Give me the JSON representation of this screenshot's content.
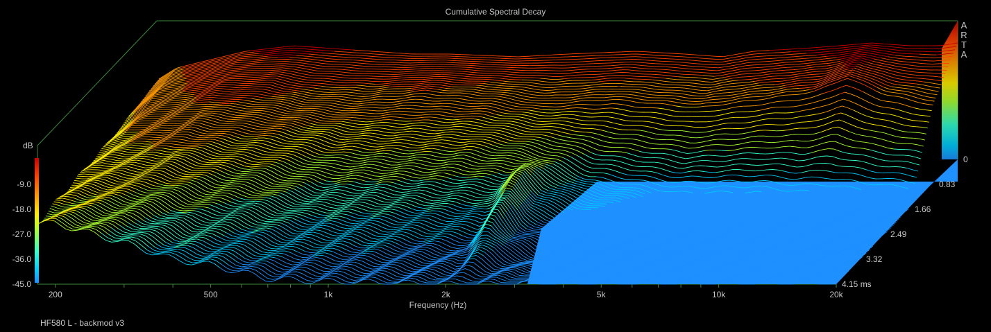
{
  "app": {
    "watermark_letters": [
      "A",
      "R",
      "T",
      "A"
    ],
    "footer_label": "HF580 L - backmod v3"
  },
  "chart_data": {
    "type": "waterfall",
    "title": "Cumulative Spectral Decay",
    "xlabel": "Frequency (Hz)",
    "ylabel": "dB",
    "zlabel": "ms",
    "x_scale": "log",
    "xlim": [
      180,
      20000
    ],
    "ylim": [
      -45,
      0
    ],
    "zlim": [
      0,
      4.15
    ],
    "x_ticks": [
      {
        "value": 200,
        "label": "200"
      },
      {
        "value": 500,
        "label": "500"
      },
      {
        "value": 1000,
        "label": "1k"
      },
      {
        "value": 2000,
        "label": "2k"
      },
      {
        "value": 5000,
        "label": "5k"
      },
      {
        "value": 10000,
        "label": "10k"
      },
      {
        "value": 20000,
        "label": "20k"
      }
    ],
    "y_ticks": [
      {
        "value": -9,
        "label": "-9.0"
      },
      {
        "value": -18,
        "label": "-18.0"
      },
      {
        "value": -27,
        "label": "-27.0"
      },
      {
        "value": -36,
        "label": "-36.0"
      },
      {
        "value": -45,
        "label": "-45.0"
      }
    ],
    "z_ticks": [
      {
        "value": 0,
        "label": "0"
      },
      {
        "value": 0.83,
        "label": "0.83"
      },
      {
        "value": 1.66,
        "label": "1.66"
      },
      {
        "value": 2.49,
        "label": "2.49"
      },
      {
        "value": 3.32,
        "label": "3.32"
      },
      {
        "value": 4.15,
        "label": "4.15 ms"
      }
    ],
    "colormap": [
      "#1e90ff",
      "#00ccff",
      "#33ffcc",
      "#aaff33",
      "#ffee00",
      "#ff9900",
      "#ff4400",
      "#cc0000"
    ],
    "floor_color": "#1e90ff",
    "slices": [
      {
        "time_ms": 0.0,
        "points": [
          [
            180,
            -16
          ],
          [
            200,
            -12
          ],
          [
            300,
            -6
          ],
          [
            400,
            -4
          ],
          [
            500,
            -5
          ],
          [
            800,
            -7
          ],
          [
            1000,
            -7
          ],
          [
            1500,
            -8
          ],
          [
            2000,
            -7
          ],
          [
            3000,
            -6
          ],
          [
            4000,
            -7
          ],
          [
            5000,
            -8
          ],
          [
            6000,
            -6
          ],
          [
            8000,
            -5
          ],
          [
            10000,
            -4
          ],
          [
            12000,
            -3
          ],
          [
            15000,
            -4
          ],
          [
            18000,
            -4
          ],
          [
            20000,
            -3
          ]
        ]
      },
      {
        "time_ms": 0.83,
        "points": [
          [
            180,
            -18
          ],
          [
            200,
            -14
          ],
          [
            300,
            -9
          ],
          [
            400,
            -9
          ],
          [
            500,
            -12
          ],
          [
            700,
            -13
          ],
          [
            1000,
            -11
          ],
          [
            1500,
            -13
          ],
          [
            2000,
            -16
          ],
          [
            3000,
            -14
          ],
          [
            5000,
            -17
          ],
          [
            8000,
            -13
          ],
          [
            10000,
            -11
          ],
          [
            12000,
            -6
          ],
          [
            15000,
            -12
          ],
          [
            20000,
            -16
          ]
        ]
      },
      {
        "time_ms": 1.66,
        "points": [
          [
            180,
            -20
          ],
          [
            200,
            -17
          ],
          [
            300,
            -13
          ],
          [
            400,
            -15
          ],
          [
            500,
            -16
          ],
          [
            700,
            -20
          ],
          [
            1000,
            -21
          ],
          [
            1500,
            -21
          ],
          [
            2000,
            -24
          ],
          [
            2500,
            -28
          ],
          [
            3000,
            -34
          ],
          [
            5000,
            -40
          ],
          [
            8000,
            -40
          ],
          [
            10000,
            -42
          ],
          [
            20000,
            -45
          ]
        ]
      },
      {
        "time_ms": 2.49,
        "points": [
          [
            180,
            -21
          ],
          [
            200,
            -19
          ],
          [
            300,
            -18
          ],
          [
            400,
            -22
          ],
          [
            500,
            -24
          ],
          [
            700,
            -30
          ],
          [
            1000,
            -30
          ],
          [
            1500,
            -32
          ],
          [
            2000,
            -33
          ],
          [
            2200,
            -25
          ],
          [
            2500,
            -36
          ],
          [
            3000,
            -40
          ],
          [
            4000,
            -45
          ],
          [
            20000,
            -45
          ]
        ]
      },
      {
        "time_ms": 3.32,
        "points": [
          [
            180,
            -22
          ],
          [
            200,
            -21
          ],
          [
            300,
            -24
          ],
          [
            400,
            -30
          ],
          [
            500,
            -31
          ],
          [
            700,
            -36
          ],
          [
            1000,
            -37
          ],
          [
            1500,
            -40
          ],
          [
            2000,
            -42
          ],
          [
            2200,
            -32
          ],
          [
            2500,
            -40
          ],
          [
            3000,
            -45
          ],
          [
            20000,
            -45
          ]
        ]
      },
      {
        "time_ms": 4.15,
        "points": [
          [
            180,
            -23
          ],
          [
            200,
            -23
          ],
          [
            300,
            -30
          ],
          [
            400,
            -36
          ],
          [
            500,
            -38
          ],
          [
            700,
            -43
          ],
          [
            1000,
            -44
          ],
          [
            2000,
            -45
          ],
          [
            20000,
            -45
          ]
        ]
      }
    ]
  }
}
